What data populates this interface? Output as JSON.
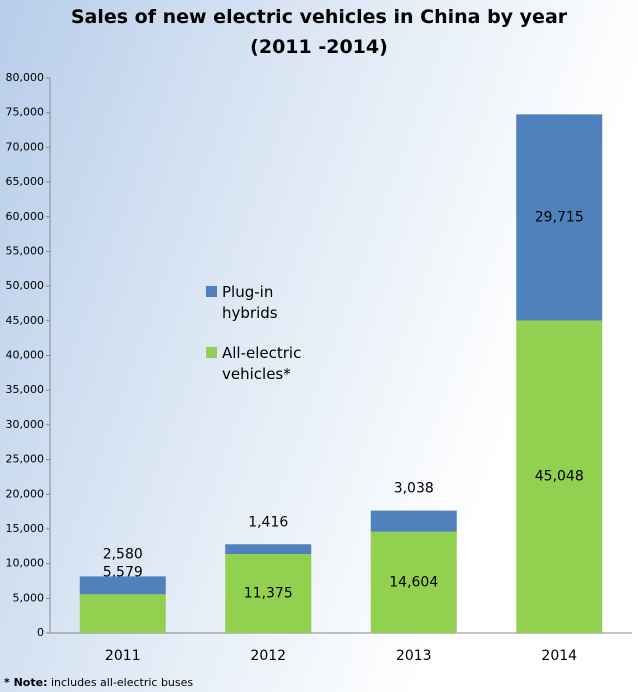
{
  "chart_data": {
    "type": "stacked_bar",
    "title": "Sales of new electric vehicles in China by year",
    "subtitle": "(2011 -2014)",
    "categories": [
      "2011",
      "2012",
      "2013",
      "2014"
    ],
    "series": [
      {
        "name": "All-electric vehicles*",
        "color": "#92d050",
        "values": [
          5579,
          11375,
          14604,
          45048
        ],
        "value_labels": [
          "5,579",
          "11,375",
          "14,604",
          "45,048"
        ]
      },
      {
        "name": "Plug-in hybrids",
        "color": "#4f81bd",
        "values": [
          2580,
          1416,
          3038,
          29715
        ],
        "value_labels": [
          "2,580",
          "1,416",
          "3,038",
          "29,715"
        ]
      }
    ],
    "ylim": [
      0,
      80000
    ],
    "yticks": [
      0,
      {
        "value": 5000,
        "label": "5,000"
      },
      {
        "value": 10000,
        "label": "10,000"
      },
      {
        "value": 15000,
        "label": "15,000"
      },
      {
        "value": 20000,
        "label": "20,000"
      },
      {
        "value": 25000,
        "label": "25,000"
      },
      {
        "value": 30000,
        "label": "30,000"
      },
      {
        "value": 35000,
        "label": "35,000"
      },
      {
        "value": 40000,
        "label": "40,000"
      },
      {
        "value": 45000,
        "label": "45,000"
      },
      {
        "value": 50000,
        "label": "50,000"
      },
      {
        "value": 55000,
        "label": "55,000"
      },
      {
        "value": 60000,
        "label": "60,000"
      },
      {
        "value": 65000,
        "label": "65,000"
      },
      {
        "value": 70000,
        "label": "70,000"
      },
      {
        "value": 75000,
        "label": "75,000"
      },
      {
        "value": 80000,
        "label": "80,000"
      }
    ],
    "note_label": "* Note:",
    "note": "includes all-electric buses"
  }
}
